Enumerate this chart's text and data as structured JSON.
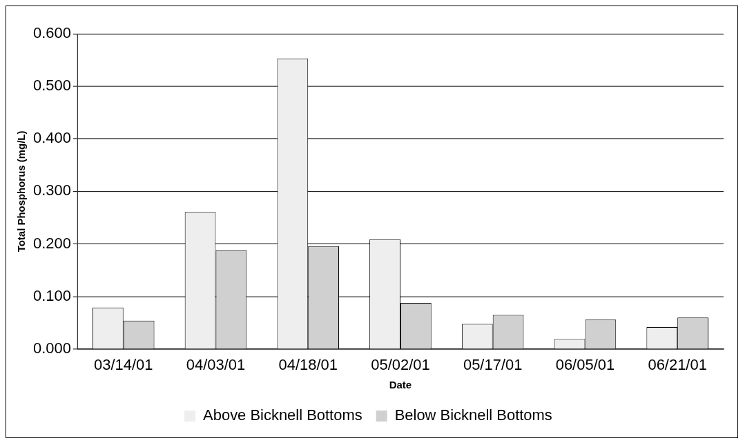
{
  "chart_data": {
    "type": "bar",
    "xlabel": "Date",
    "ylabel": "Total Phosphorus (mg/L)",
    "categories": [
      "03/14/01",
      "04/03/01",
      "04/18/01",
      "05/02/01",
      "05/17/01",
      "06/05/01",
      "06/21/01"
    ],
    "series": [
      {
        "name": "Above Bicknell Bottoms",
        "color": "#eeeeee",
        "values": [
          0.079,
          0.261,
          0.553,
          0.209,
          0.048,
          0.019,
          0.042
        ]
      },
      {
        "name": "Below Bicknell Bottoms",
        "color": "#d0d0d0",
        "values": [
          0.054,
          0.188,
          0.196,
          0.088,
          0.065,
          0.056,
          0.06
        ]
      }
    ],
    "ylim": [
      0,
      0.6
    ],
    "yticks": [
      {
        "value": 0,
        "label": "0.000"
      },
      {
        "value": 0.1,
        "label": "0.100"
      },
      {
        "value": 0.2,
        "label": "0.200"
      },
      {
        "value": 0.3,
        "label": "0.300"
      },
      {
        "value": 0.4,
        "label": "0.400"
      },
      {
        "value": 0.5,
        "label": "0.500"
      },
      {
        "value": 0.6,
        "label": "0.600"
      }
    ],
    "grid": "y",
    "legend": "bottom"
  }
}
